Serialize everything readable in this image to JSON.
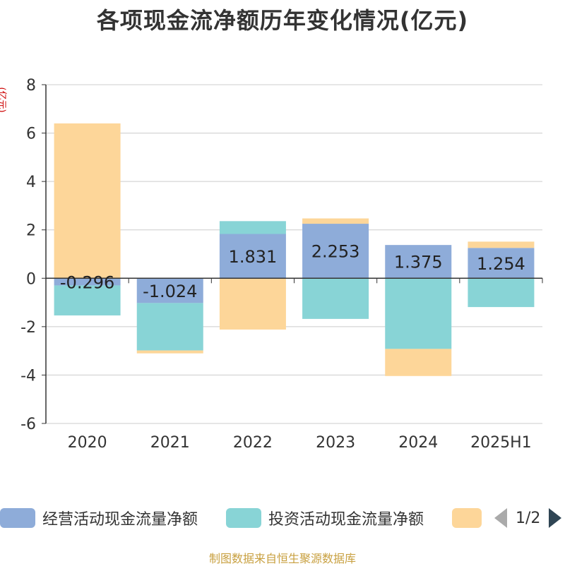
{
  "chart_data": {
    "type": "bar",
    "stacked": true,
    "title": "各项现金流净额历年变化情况(亿元)",
    "ylabel": "(亿元)",
    "categories": [
      "2020",
      "2021",
      "2022",
      "2023",
      "2024",
      "2025H1"
    ],
    "ylim": [
      -6,
      8
    ],
    "yticks": [
      -6,
      -4,
      -2,
      0,
      2,
      4,
      6,
      8
    ],
    "grid": true,
    "series": [
      {
        "name": "经营活动现金流量净额",
        "color": "#8eacd9",
        "values": [
          -0.296,
          -1.024,
          1.831,
          2.253,
          1.375,
          1.254
        ],
        "show_labels": true
      },
      {
        "name": "投资活动现金流量净额",
        "color": "#88d4d6",
        "values": [
          -1.24,
          -1.96,
          0.53,
          -1.68,
          -2.92,
          -1.19
        ],
        "show_labels": false
      },
      {
        "name": "",
        "color": "#fdd699",
        "values": [
          6.4,
          -0.12,
          -2.12,
          0.22,
          -1.12,
          0.26
        ],
        "show_labels": false
      }
    ],
    "legend_position": "bottom"
  },
  "legend": {
    "items": [
      {
        "label": "经营活动现金流量净额",
        "color": "#8eacd9"
      },
      {
        "label": "投资活动现金流量净额",
        "color": "#88d4d6"
      },
      {
        "label": "",
        "color": "#fdd699"
      }
    ],
    "page": "1/2"
  },
  "footer": {
    "source": "制图数据来自恒生聚源数据库"
  }
}
